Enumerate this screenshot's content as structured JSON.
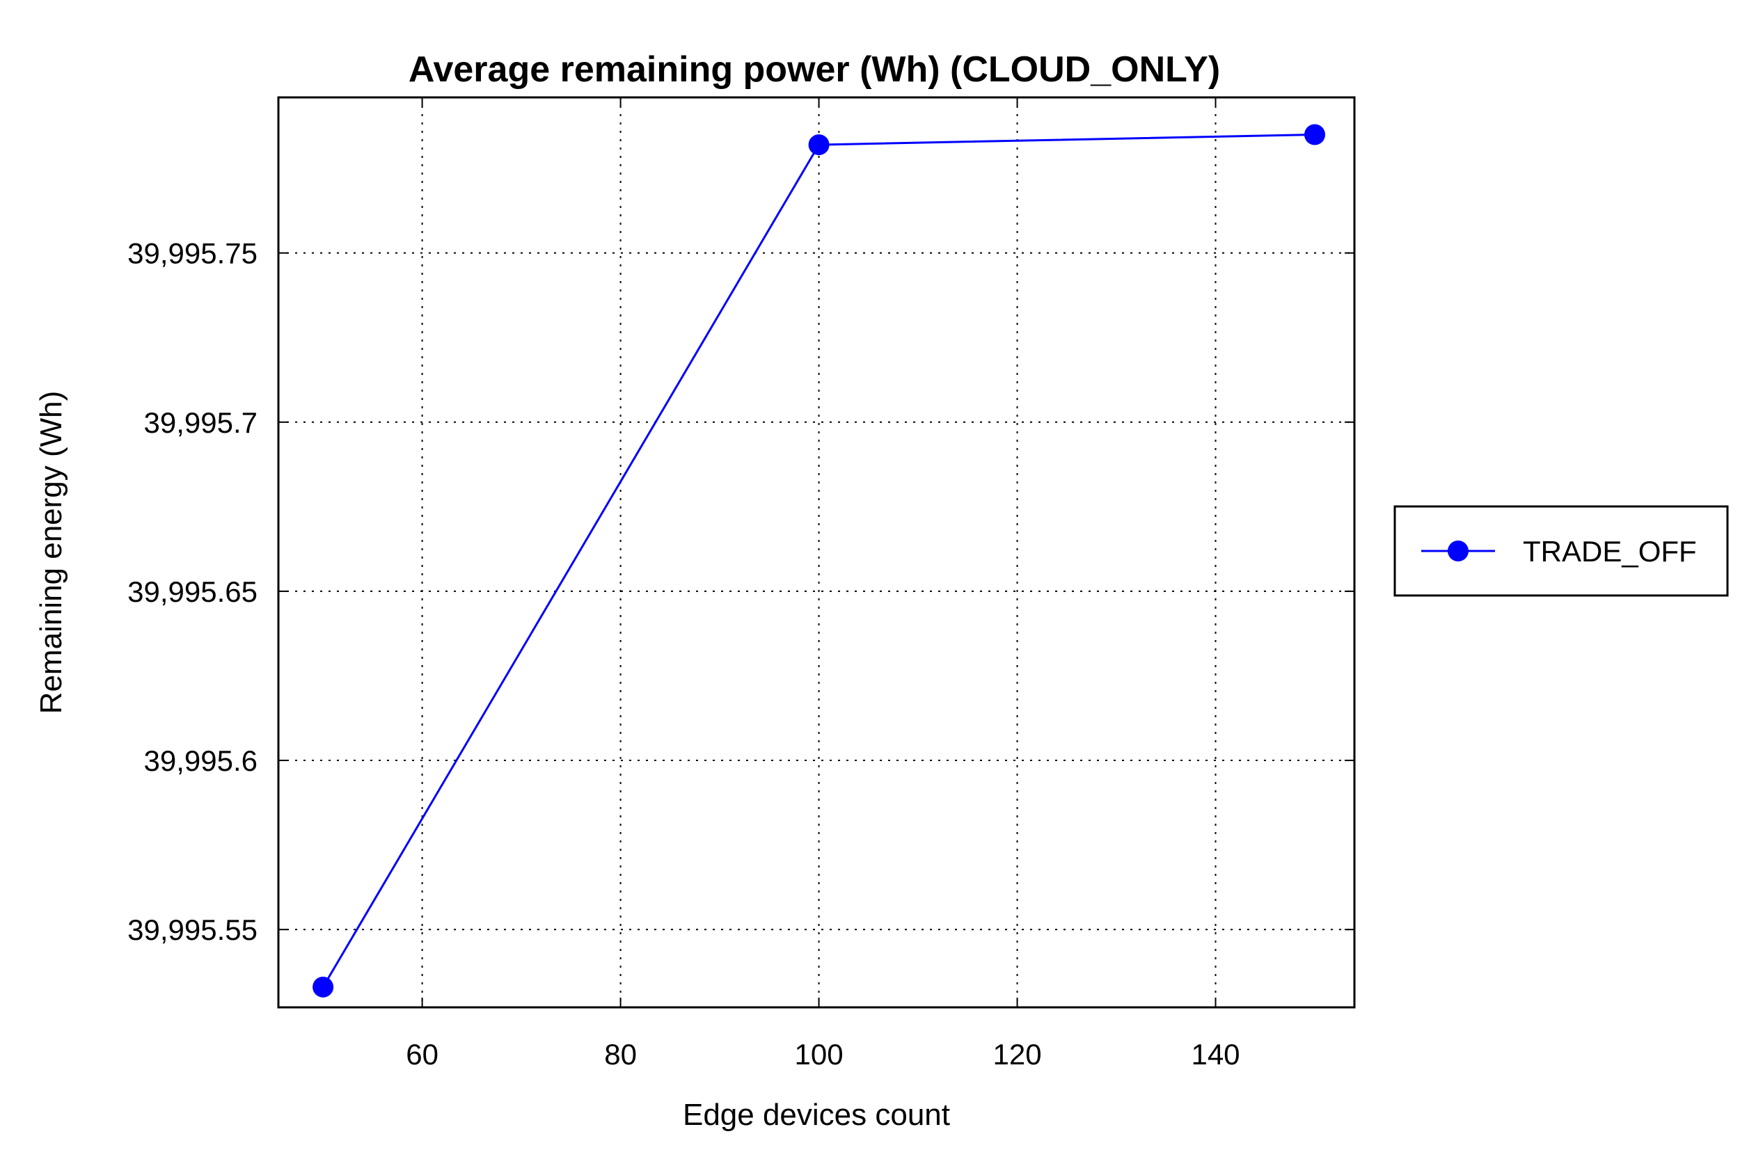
{
  "chart_data": {
    "type": "line",
    "title": "Average remaining power (Wh) (CLOUD_ONLY)",
    "xlabel": "Edge devices count",
    "ylabel": "Remaining energy (Wh)",
    "xlim": [
      45.5,
      154
    ],
    "ylim": [
      39995.527,
      39995.796
    ],
    "x_ticks": [
      60,
      80,
      100,
      120,
      140
    ],
    "x_tick_labels": [
      "60",
      "80",
      "100",
      "120",
      "140"
    ],
    "y_ticks": [
      39995.55,
      39995.6,
      39995.65,
      39995.7,
      39995.75
    ],
    "y_tick_labels": [
      "39,995.55",
      "39,995.6",
      "39,995.65",
      "39,995.7",
      "39,995.75"
    ],
    "grid": true,
    "legend_position": "right",
    "series": [
      {
        "name": "TRADE_OFF",
        "color": "#0000ff",
        "marker": "circle",
        "x": [
          50,
          100,
          150
        ],
        "y": [
          39995.533,
          39995.782,
          39995.785
        ]
      }
    ]
  }
}
